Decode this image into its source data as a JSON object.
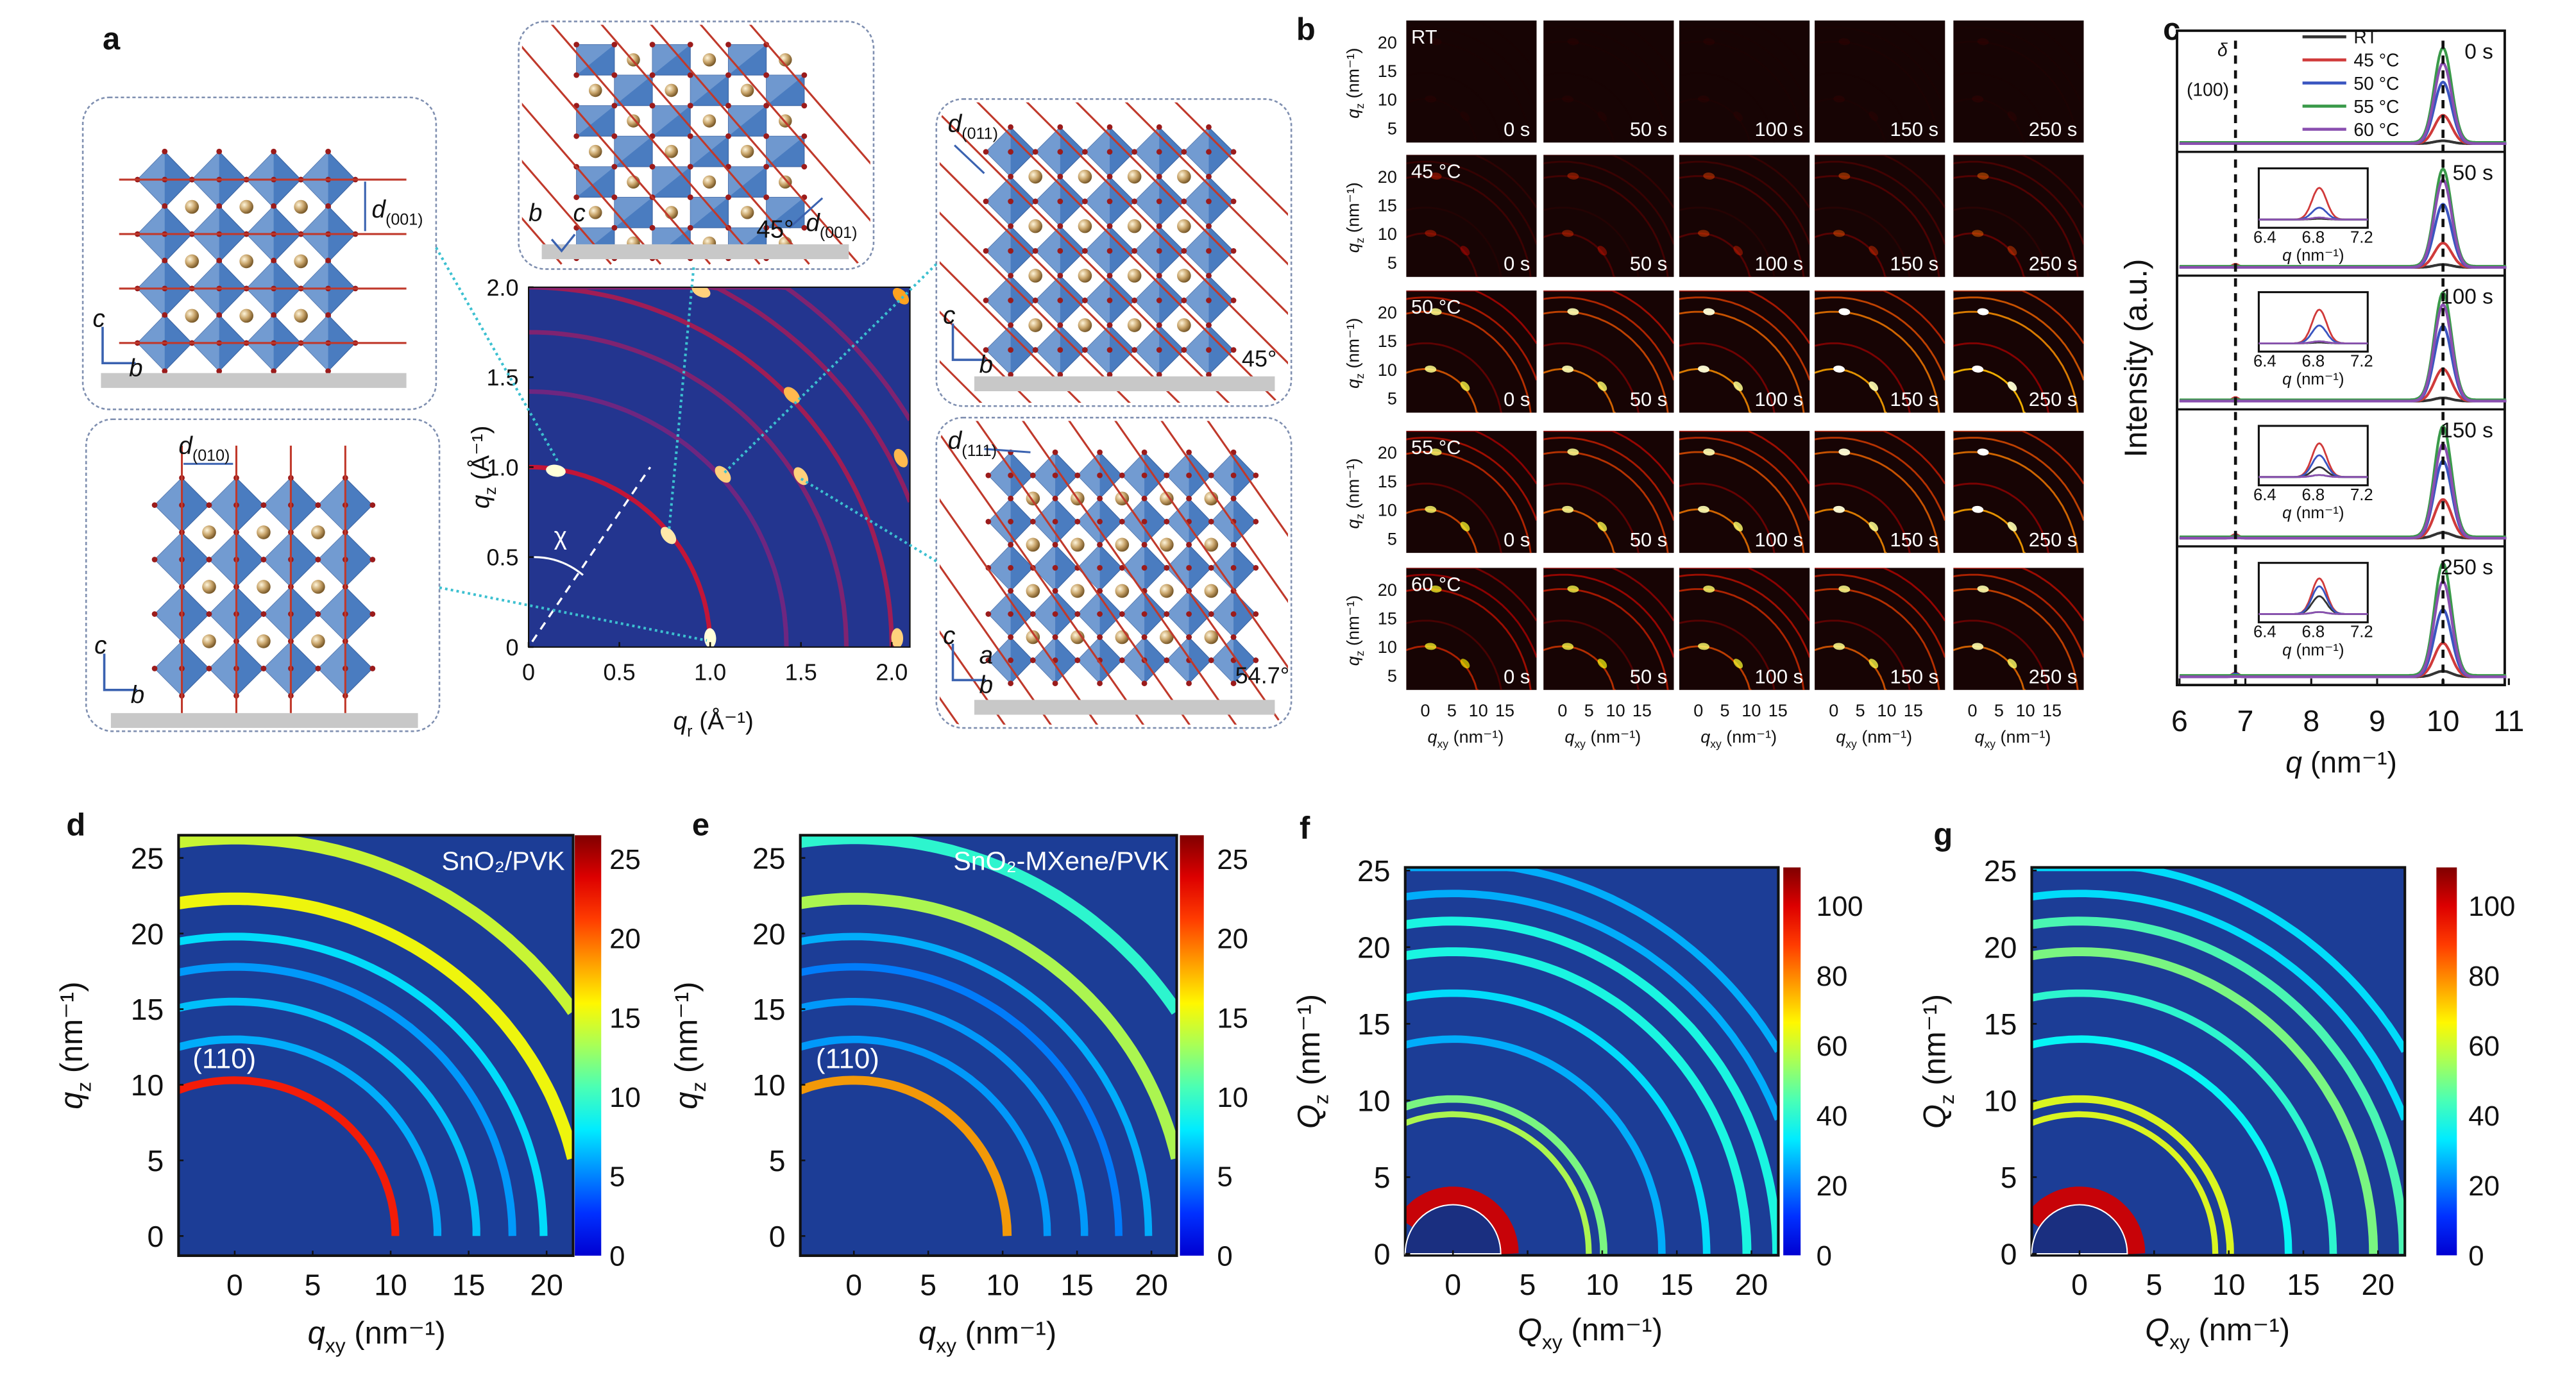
{
  "panel_labels": {
    "a": "a",
    "b": "b",
    "c": "c",
    "d": "d",
    "e": "e",
    "f": "f",
    "g": "g"
  },
  "panel_a": {
    "boxes": [
      {
        "id": "tl",
        "spacing_label": {
          "var": "d",
          "sub": "(001)"
        },
        "axes": [
          "c",
          "b"
        ]
      },
      {
        "id": "bl",
        "spacing_label": {
          "var": "d",
          "sub": "(010)"
        },
        "axes": [
          "c",
          "b"
        ]
      },
      {
        "id": "tc",
        "spacing_label": {
          "var": "d",
          "sub": "(001)"
        },
        "axes": [
          "b",
          "c"
        ],
        "angle": "45°"
      },
      {
        "id": "tr",
        "spacing_label": {
          "var": "d",
          "sub": "(011)"
        },
        "axes": [
          "c",
          "b"
        ],
        "angle": "45°"
      },
      {
        "id": "br",
        "spacing_label": {
          "var": "d",
          "sub": "(111)"
        },
        "axes": [
          "c",
          "b",
          "a"
        ],
        "angle": "54.7°"
      }
    ],
    "colors": {
      "octahedron": "#4a7cc0",
      "octahedron_light": "#93b4de",
      "pb_atom": "#9b1b1b",
      "cation": "#c8a46a",
      "plane_line": "#c0392b",
      "substrate": "#c8c8c8",
      "connector": "#3cc0d0",
      "box_border": "#7f8fb0"
    }
  },
  "chart_data": [
    {
      "type": "heatmap",
      "panel": "a",
      "colormap": "fire",
      "background": "#23358f",
      "xlabel": {
        "var": "q",
        "sub": "r",
        "unit": " (Å⁻¹)"
      },
      "ylabel": {
        "var": "q",
        "sub": "z",
        "unit": " (Å⁻¹)"
      },
      "xlim": [
        0,
        2.1
      ],
      "ylim": [
        0,
        2.0
      ],
      "x_ticks": [
        "0",
        "0.5",
        "1.0",
        "1.5",
        "2.0"
      ],
      "y_ticks": [
        "0",
        "0.5",
        "1.0",
        "1.5",
        "2.0"
      ],
      "annotation": "χ",
      "rings": [
        {
          "q": 1.0,
          "intensity": 0.55
        },
        {
          "q": 1.42,
          "intensity": 0.3
        },
        {
          "q": 1.75,
          "intensity": 0.35
        },
        {
          "q": 2.0,
          "intensity": 0.45
        },
        {
          "q": 2.25,
          "intensity": 0.4
        },
        {
          "q": 2.45,
          "intensity": 0.35
        }
      ],
      "spots": [
        {
          "qr": 1.0,
          "qz": 0.05,
          "intensity": 1.0
        },
        {
          "qr": 0.15,
          "qz": 0.98,
          "intensity": 1.0
        },
        {
          "qr": 0.77,
          "qz": 0.62,
          "intensity": 0.95
        },
        {
          "qr": 1.07,
          "qz": 0.96,
          "intensity": 0.9
        },
        {
          "qr": 1.5,
          "qz": 0.95,
          "intensity": 0.9
        },
        {
          "qr": 1.45,
          "qz": 1.4,
          "intensity": 0.85
        },
        {
          "qr": 2.03,
          "qz": 0.05,
          "intensity": 0.9
        },
        {
          "qr": 2.05,
          "qz": 1.05,
          "intensity": 0.85
        },
        {
          "qr": 0.95,
          "qz": 1.98,
          "intensity": 0.9
        },
        {
          "qr": 2.05,
          "qz": 1.95,
          "intensity": 0.8
        }
      ]
    },
    {
      "type": "heatmap",
      "panel": "b",
      "colormap": "hot",
      "background": "#170404",
      "xlabel": {
        "var": "q",
        "sub": "xy",
        "unit": " (nm⁻¹)"
      },
      "ylabel": {
        "var": "q",
        "sub": "z",
        "unit": " (nm⁻¹)"
      },
      "xlim": [
        -3.6,
        21
      ],
      "ylim": [
        2.4,
        23.7
      ],
      "x_ticks": [
        "0",
        "5",
        "10",
        "15"
      ],
      "y_ticks": [
        "5",
        "10",
        "15",
        "20"
      ],
      "rows": [
        {
          "label": "RT",
          "intensity": 0.15
        },
        {
          "label": "45 °C",
          "intensity": 0.45
        },
        {
          "label": "50 °C",
          "intensity": 1.0
        },
        {
          "label": "55 °C",
          "intensity": 0.95
        },
        {
          "label": "60 °C",
          "intensity": 0.85
        }
      ],
      "time_labels": [
        "0 s",
        "50 s",
        "100 s",
        "150 s",
        "250 s"
      ],
      "rings": [
        {
          "q": 10,
          "intensity": 0.55
        },
        {
          "q": 14.5,
          "intensity": 0.3
        },
        {
          "q": 20,
          "intensity": 0.5
        },
        {
          "q": 22.5,
          "intensity": 0.45
        },
        {
          "q": 25.5,
          "intensity": 0.4
        }
      ],
      "spots": [
        {
          "qxy": 1,
          "qz": 10,
          "intensity": 1.0
        },
        {
          "qxy": 2,
          "qz": 20,
          "intensity": 1.0
        },
        {
          "qxy": 7.5,
          "qz": 7,
          "intensity": 0.9
        }
      ]
    },
    {
      "type": "line",
      "panel": "c",
      "xlim": [
        6,
        11
      ],
      "x_ticks": [
        "6",
        "7",
        "8",
        "9",
        "10",
        "11"
      ],
      "xlabel": {
        "var": "q",
        "unit": " (nm⁻¹)"
      },
      "ylabel": "Intensity (a.u.)",
      "annotations": {
        "delta": "δ",
        "plane": "(100)"
      },
      "dashed_lines_q": [
        6.85,
        10
      ],
      "series": [
        {
          "name": "RT",
          "color": "#333333"
        },
        {
          "name": "45 °C",
          "color": "#d03a3a"
        },
        {
          "name": "50 °C",
          "color": "#3a55c0"
        },
        {
          "name": "55 °C",
          "color": "#3a9a4a"
        },
        {
          "name": "60 °C",
          "color": "#8a4fb0"
        }
      ],
      "subplots": [
        {
          "time": "0 s",
          "peak_10": [
            0.03,
            0.3,
            0.65,
            1.0,
            0.85
          ],
          "peak_6_85": [
            0,
            0,
            0,
            0,
            0
          ]
        },
        {
          "time": "50 s",
          "peak_10": [
            0.03,
            0.25,
            0.65,
            1.0,
            0.9
          ],
          "peak_6_85": [
            0.02,
            0.8,
            0.3,
            0.05,
            0.05
          ]
        },
        {
          "time": "100 s",
          "peak_10": [
            0.03,
            0.3,
            0.7,
            1.0,
            0.9
          ],
          "peak_6_85": [
            0.02,
            0.85,
            0.45,
            0.05,
            0.05
          ]
        },
        {
          "time": "150 s",
          "peak_10": [
            0.05,
            0.35,
            0.7,
            1.0,
            0.85
          ],
          "peak_6_85": [
            0.25,
            0.85,
            0.55,
            0.05,
            0.05
          ]
        },
        {
          "time": "250 s",
          "peak_10": [
            0.05,
            0.3,
            0.6,
            1.0,
            0.85
          ],
          "peak_6_85": [
            0.45,
            0.9,
            0.7,
            0.05,
            0.05
          ]
        }
      ],
      "inset_x_ticks": [
        "6.4",
        "6.8",
        "7.2"
      ],
      "inset_xlabel": {
        "var": "q",
        "unit": " (nm⁻¹)"
      }
    },
    {
      "type": "heatmap",
      "panel": "d",
      "colormap": "jet",
      "background": "#1c3d96",
      "title": "SnO₂/PVK",
      "annotation": "(110)",
      "xlabel": {
        "var": "q",
        "sub": "xy",
        "unit": " (nm⁻¹)"
      },
      "ylabel": {
        "var": "q",
        "sub": "z",
        "unit": " (nm⁻¹)"
      },
      "xlim": [
        -3.6,
        21.7
      ],
      "ylim": [
        -1.3,
        26.5
      ],
      "x_ticks": [
        "0",
        "5",
        "10",
        "15",
        "20"
      ],
      "y_ticks": [
        "0",
        "5",
        "10",
        "15",
        "20",
        "25"
      ],
      "colorbar": {
        "range": [
          0,
          26.5
        ],
        "ticks": [
          "0",
          "5",
          "10",
          "15",
          "20",
          "25"
        ]
      },
      "rings": [
        {
          "q": 10.3,
          "intensity": 0.85,
          "width": 0.5
        },
        {
          "q": 13,
          "intensity": 0.3
        },
        {
          "q": 15.5,
          "intensity": 0.32
        },
        {
          "q": 17.8,
          "intensity": 0.28
        },
        {
          "q": 19.8,
          "intensity": 0.35
        },
        {
          "q": 22.3,
          "intensity": 0.62,
          "width": 0.8
        },
        {
          "q": 26.3,
          "intensity": 0.58,
          "width": 0.8
        }
      ]
    },
    {
      "type": "heatmap",
      "panel": "e",
      "colormap": "jet",
      "background": "#1c3d96",
      "title": "SnO₂-MXene/PVK",
      "annotation": "(110)",
      "xlabel": {
        "var": "q",
        "sub": "xy",
        "unit": " (nm⁻¹)"
      },
      "ylabel": {
        "var": "q",
        "sub": "z",
        "unit": " (nm⁻¹)"
      },
      "xlim": [
        -3.6,
        21.7
      ],
      "ylim": [
        -1.3,
        26.5
      ],
      "x_ticks": [
        "0",
        "5",
        "10",
        "15",
        "20"
      ],
      "y_ticks": [
        "0",
        "5",
        "10",
        "15",
        "20",
        "25"
      ],
      "colorbar": {
        "range": [
          0,
          26.5
        ],
        "ticks": [
          "0",
          "5",
          "10",
          "15",
          "20",
          "25"
        ]
      },
      "rings": [
        {
          "q": 10.3,
          "intensity": 0.72,
          "width": 0.6
        },
        {
          "q": 13,
          "intensity": 0.28
        },
        {
          "q": 15.5,
          "intensity": 0.28
        },
        {
          "q": 17.8,
          "intensity": 0.25
        },
        {
          "q": 19.8,
          "intensity": 0.3
        },
        {
          "q": 22.3,
          "intensity": 0.55,
          "width": 0.8
        },
        {
          "q": 26.3,
          "intensity": 0.42,
          "width": 0.8
        }
      ]
    },
    {
      "type": "heatmap",
      "panel": "f",
      "colormap": "jet",
      "background": "#1c3d96",
      "xlabel": {
        "var": "Q",
        "sub": "xy",
        "unit": " (nm⁻¹)"
      },
      "ylabel": {
        "var": "Q",
        "sub": "z",
        "unit": " (nm⁻¹)"
      },
      "xlim": [
        -3.2,
        21.8
      ],
      "ylim": [
        -0.1,
        25.2
      ],
      "x_ticks": [
        "0",
        "5",
        "10",
        "15",
        "20"
      ],
      "y_ticks": [
        "0",
        "5",
        "10",
        "15",
        "20",
        "25"
      ],
      "colorbar": {
        "range": [
          0,
          111
        ],
        "ticks": [
          "0",
          "20",
          "40",
          "60",
          "80",
          "100"
        ]
      },
      "rings": [
        {
          "q": 3.8,
          "intensity": 0.92,
          "width": 1.2
        },
        {
          "q": 9.1,
          "intensity": 0.55,
          "width": 0.4
        },
        {
          "q": 10.1,
          "intensity": 0.5,
          "width": 0.5
        },
        {
          "q": 14,
          "intensity": 0.3
        },
        {
          "q": 17,
          "intensity": 0.35
        },
        {
          "q": 19.7,
          "intensity": 0.4,
          "width": 0.6
        },
        {
          "q": 21.7,
          "intensity": 0.4,
          "width": 0.6
        },
        {
          "q": 23.5,
          "intensity": 0.3
        },
        {
          "q": 25.5,
          "intensity": 0.3
        }
      ]
    },
    {
      "type": "heatmap",
      "panel": "g",
      "colormap": "jet",
      "background": "#1c3d96",
      "xlabel": {
        "var": "Q",
        "sub": "xy",
        "unit": " (nm⁻¹)"
      },
      "ylabel": {
        "var": "Q",
        "sub": "z",
        "unit": " (nm⁻¹)"
      },
      "xlim": [
        -3.2,
        21.8
      ],
      "ylim": [
        -0.1,
        25.2
      ],
      "x_ticks": [
        "0",
        "5",
        "10",
        "15",
        "20"
      ],
      "y_ticks": [
        "0",
        "5",
        "10",
        "15",
        "20",
        "25"
      ],
      "colorbar": {
        "range": [
          0,
          111
        ],
        "ticks": [
          "0",
          "20",
          "40",
          "60",
          "80",
          "100"
        ]
      },
      "rings": [
        {
          "q": 3.8,
          "intensity": 0.92,
          "width": 1.2
        },
        {
          "q": 9.1,
          "intensity": 0.6,
          "width": 0.4
        },
        {
          "q": 10.1,
          "intensity": 0.6,
          "width": 0.5
        },
        {
          "q": 14,
          "intensity": 0.38
        },
        {
          "q": 17,
          "intensity": 0.42
        },
        {
          "q": 19.7,
          "intensity": 0.5,
          "width": 0.6
        },
        {
          "q": 21.7,
          "intensity": 0.45,
          "width": 0.6
        },
        {
          "q": 23.5,
          "intensity": 0.35
        },
        {
          "q": 25.5,
          "intensity": 0.35
        }
      ]
    }
  ]
}
